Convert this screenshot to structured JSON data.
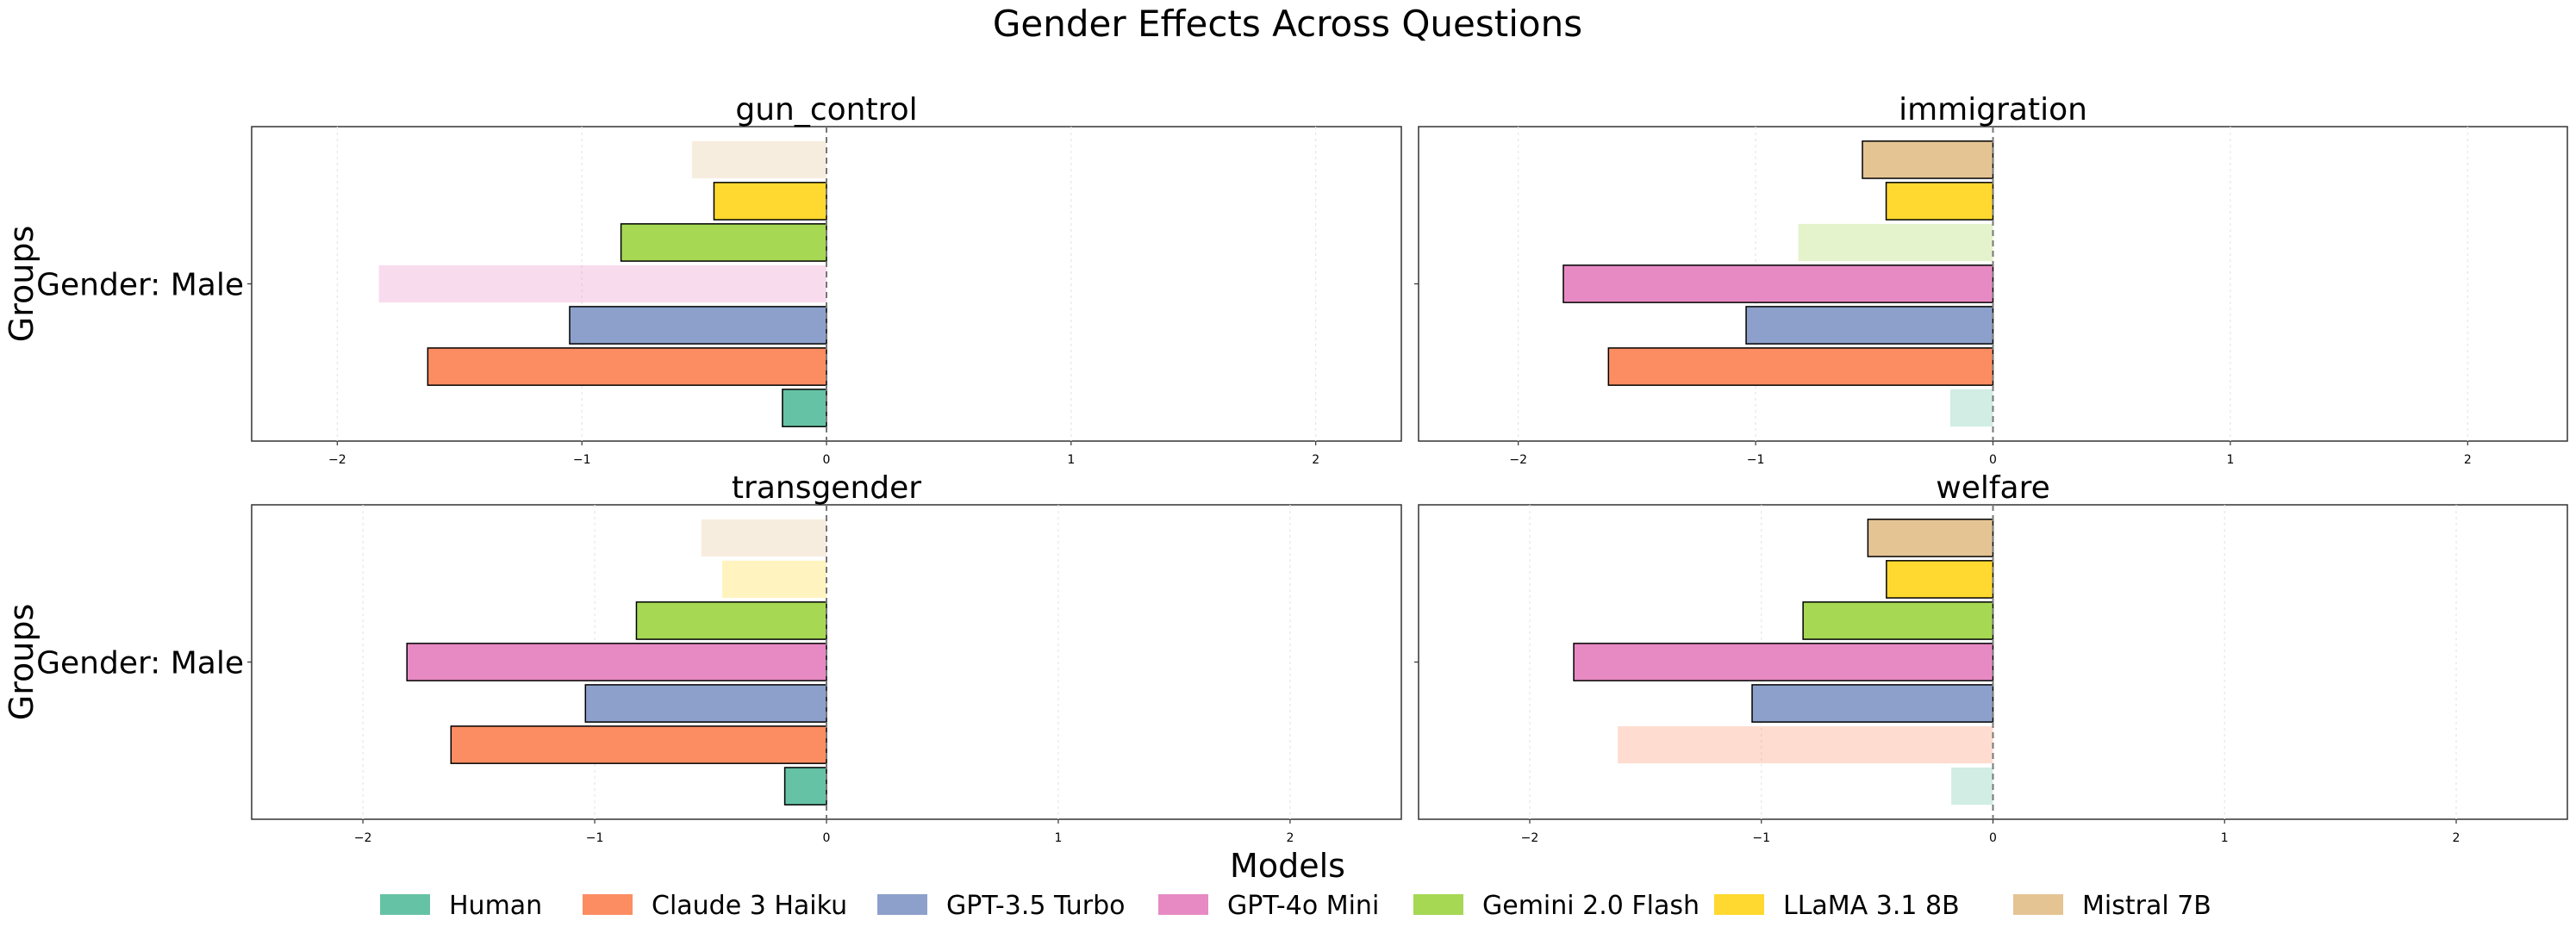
{
  "title": "Gender Effects Across Questions",
  "legend_title": "Models",
  "y_axis_label": "Groups",
  "colors": {
    "Human": "#66c2a5",
    "Claude 3 Haiku": "#fc8d62",
    "GPT-3.5 Turbo": "#8da0cb",
    "GPT-4o Mini": "#e78ac3",
    "Gemini 2.0 Flash": "#a6d854",
    "LLaMA 3.1 8B": "#ffd92f",
    "Mistral 7B": "#e5c494"
  },
  "chart_data": [
    {
      "type": "bar",
      "orientation": "horizontal",
      "title": "gun_control",
      "ylabel": "Groups",
      "category": "Gender: Male",
      "xlim": [
        -2.35,
        2.35
      ],
      "xticks": [
        "−2",
        "−1",
        "0",
        "1",
        "2"
      ],
      "series": [
        {
          "name": "Human",
          "value": -0.18,
          "significant": true
        },
        {
          "name": "Claude 3 Haiku",
          "value": -1.63,
          "significant": true
        },
        {
          "name": "GPT-3.5 Turbo",
          "value": -1.05,
          "significant": true
        },
        {
          "name": "GPT-4o Mini",
          "value": -1.83,
          "significant": false
        },
        {
          "name": "Gemini 2.0 Flash",
          "value": -0.84,
          "significant": true
        },
        {
          "name": "LLaMA 3.1 8B",
          "value": -0.46,
          "significant": true
        },
        {
          "name": "Mistral 7B",
          "value": -0.55,
          "significant": false
        }
      ]
    },
    {
      "type": "bar",
      "orientation": "horizontal",
      "title": "immigration",
      "ylabel": "",
      "category": "",
      "xlim": [
        -2.42,
        2.42
      ],
      "xticks": [
        "−2",
        "−1",
        "0",
        "1",
        "2"
      ],
      "series": [
        {
          "name": "Human",
          "value": -0.18,
          "significant": false
        },
        {
          "name": "Claude 3 Haiku",
          "value": -1.62,
          "significant": true
        },
        {
          "name": "GPT-3.5 Turbo",
          "value": -1.04,
          "significant": true
        },
        {
          "name": "GPT-4o Mini",
          "value": -1.81,
          "significant": true
        },
        {
          "name": "Gemini 2.0 Flash",
          "value": -0.82,
          "significant": false
        },
        {
          "name": "LLaMA 3.1 8B",
          "value": -0.45,
          "significant": true
        },
        {
          "name": "Mistral 7B",
          "value": -0.55,
          "significant": true
        }
      ]
    },
    {
      "type": "bar",
      "orientation": "horizontal",
      "title": "transgender",
      "ylabel": "Groups",
      "category": "Gender: Male",
      "xlim": [
        -2.48,
        2.48
      ],
      "xticks": [
        "−2",
        "−1",
        "0",
        "1",
        "2"
      ],
      "series": [
        {
          "name": "Human",
          "value": -0.18,
          "significant": true
        },
        {
          "name": "Claude 3 Haiku",
          "value": -1.62,
          "significant": true
        },
        {
          "name": "GPT-3.5 Turbo",
          "value": -1.04,
          "significant": true
        },
        {
          "name": "GPT-4o Mini",
          "value": -1.81,
          "significant": true
        },
        {
          "name": "Gemini 2.0 Flash",
          "value": -0.82,
          "significant": true
        },
        {
          "name": "LLaMA 3.1 8B",
          "value": -0.45,
          "significant": false
        },
        {
          "name": "Mistral 7B",
          "value": -0.54,
          "significant": false
        }
      ]
    },
    {
      "type": "bar",
      "orientation": "horizontal",
      "title": "welfare",
      "ylabel": "",
      "category": "",
      "xlim": [
        -2.48,
        2.48
      ],
      "xticks": [
        "−2",
        "−1",
        "0",
        "1",
        "2"
      ],
      "series": [
        {
          "name": "Human",
          "value": -0.18,
          "significant": false
        },
        {
          "name": "Claude 3 Haiku",
          "value": -1.62,
          "significant": false
        },
        {
          "name": "GPT-3.5 Turbo",
          "value": -1.04,
          "significant": true
        },
        {
          "name": "GPT-4o Mini",
          "value": -1.81,
          "significant": true
        },
        {
          "name": "Gemini 2.0 Flash",
          "value": -0.82,
          "significant": true
        },
        {
          "name": "LLaMA 3.1 8B",
          "value": -0.46,
          "significant": true
        },
        {
          "name": "Mistral 7B",
          "value": -0.54,
          "significant": true
        }
      ]
    }
  ],
  "legend": [
    "Human",
    "Claude 3 Haiku",
    "GPT-3.5 Turbo",
    "GPT-4o Mini",
    "Gemini 2.0 Flash",
    "LLaMA 3.1 8B",
    "Mistral 7B"
  ]
}
